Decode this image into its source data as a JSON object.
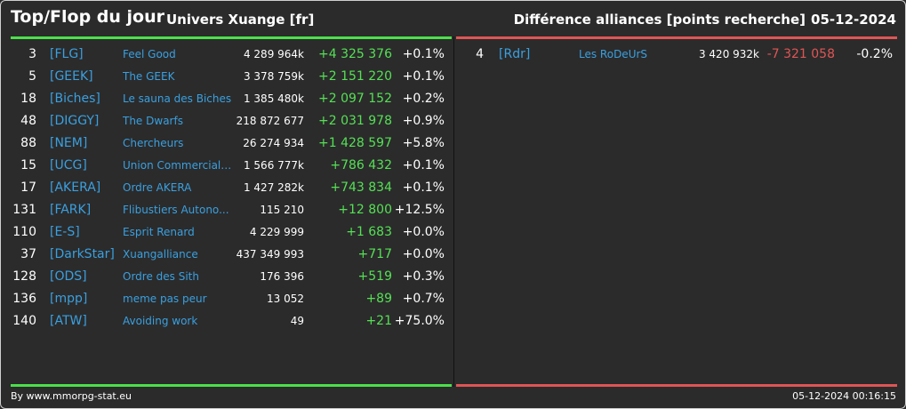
{
  "header": {
    "title": "Top/Flop du jour",
    "universe": "Univers Xuange [fr]",
    "category": "Différence alliances [points recherche]",
    "date": "05-12-2024"
  },
  "top": [
    {
      "rank": "3",
      "tag": "[FLG]",
      "name": "Feel Good",
      "points": "4 289 964k",
      "delta": "+4 325 376",
      "pct": "+0.1%"
    },
    {
      "rank": "5",
      "tag": "[GEEK]",
      "name": "The GEEK",
      "points": "3 378 759k",
      "delta": "+2 151 220",
      "pct": "+0.1%"
    },
    {
      "rank": "18",
      "tag": "[Biches]",
      "name": "Le sauna des Biches",
      "points": "1 385 480k",
      "delta": "+2 097 152",
      "pct": "+0.2%"
    },
    {
      "rank": "48",
      "tag": "[DIGGY]",
      "name": "The Dwarfs",
      "points": "218 872 677",
      "delta": "+2 031 978",
      "pct": "+0.9%"
    },
    {
      "rank": "88",
      "tag": "[NEM]",
      "name": "Chercheurs",
      "points": "26 274 934",
      "delta": "+1 428 597",
      "pct": "+5.8%"
    },
    {
      "rank": "15",
      "tag": "[UCG]",
      "name": "Union Commerciale...",
      "points": "1 566 777k",
      "delta": "+786 432",
      "pct": "+0.1%"
    },
    {
      "rank": "17",
      "tag": "[AKERA]",
      "name": "Ordre AKERA",
      "points": "1 427 282k",
      "delta": "+743 834",
      "pct": "+0.1%"
    },
    {
      "rank": "131",
      "tag": "[FARK]",
      "name": "Flibustiers Autono...",
      "points": "115 210",
      "delta": "+12 800",
      "pct": "+12.5%"
    },
    {
      "rank": "110",
      "tag": "[E-S]",
      "name": "Esprit Renard",
      "points": "4 229 999",
      "delta": "+1 683",
      "pct": "+0.0%"
    },
    {
      "rank": "37",
      "tag": "[DarkStar]",
      "name": "Xuangalliance",
      "points": "437 349 993",
      "delta": "+717",
      "pct": "+0.0%"
    },
    {
      "rank": "128",
      "tag": "[ODS]",
      "name": "Ordre des Sith",
      "points": "176 396",
      "delta": "+519",
      "pct": "+0.3%"
    },
    {
      "rank": "136",
      "tag": "[mpp]",
      "name": "meme pas peur",
      "points": "13 052",
      "delta": "+89",
      "pct": "+0.7%"
    },
    {
      "rank": "140",
      "tag": "[ATW]",
      "name": "Avoiding work",
      "points": "49",
      "delta": "+21",
      "pct": "+75.0%"
    }
  ],
  "flop": [
    {
      "rank": "4",
      "tag": "[Rdr]",
      "name": "Les RoDeUrS",
      "points": "3 420 932k",
      "delta": "-7 321 058",
      "pct": "-0.2%"
    }
  ],
  "footer": {
    "source": "By www.mmorpg-stat.eu",
    "timestamp": "05-12-2024 00:16:15"
  },
  "colors": {
    "positive": "#55e055",
    "negative": "#e05555",
    "link": "#3aa0e0",
    "background": "#2b2b2b"
  }
}
